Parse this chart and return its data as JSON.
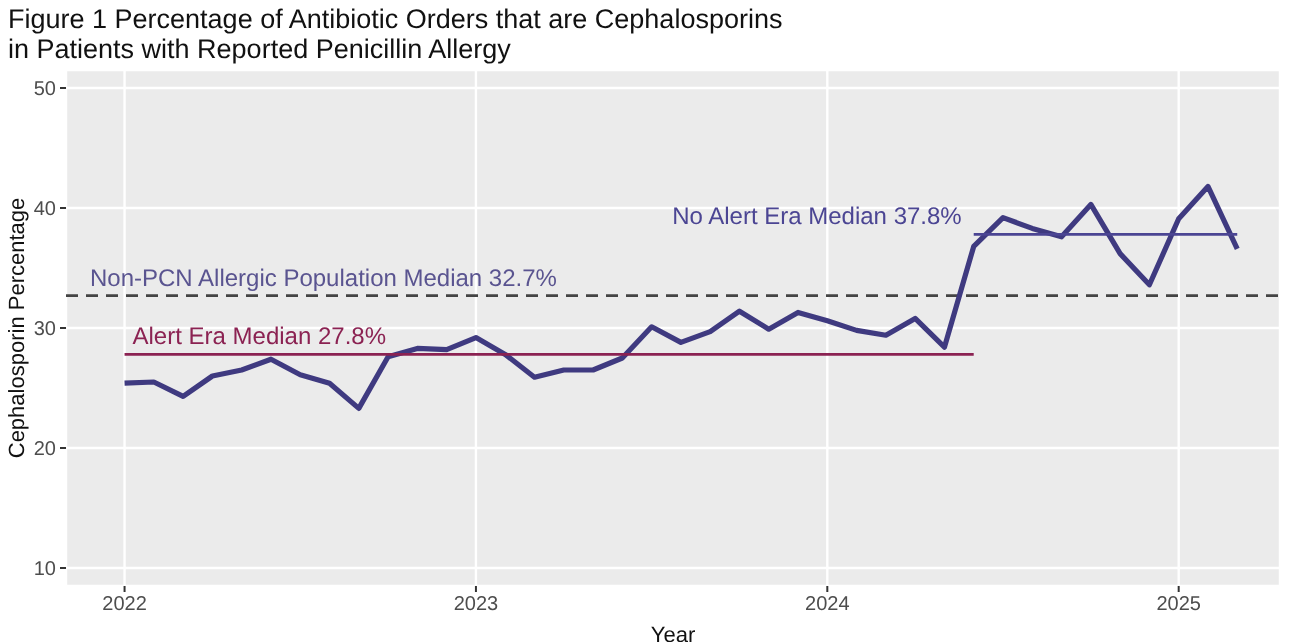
{
  "chart_data": {
    "type": "line",
    "title": "Figure 1 Percentage of Antibiotic Orders that are Cephalosporins\nin Patients with Reported Penicillin Allergy",
    "xlabel": "Year",
    "ylabel": "Cephalosporin Percentage",
    "x": [
      "2022-01",
      "2022-02",
      "2022-03",
      "2022-04",
      "2022-05",
      "2022-06",
      "2022-07",
      "2022-08",
      "2022-09",
      "2022-10",
      "2022-11",
      "2022-12",
      "2023-01",
      "2023-02",
      "2023-03",
      "2023-04",
      "2023-05",
      "2023-06",
      "2023-07",
      "2023-08",
      "2023-09",
      "2023-10",
      "2023-11",
      "2023-12",
      "2024-01",
      "2024-02",
      "2024-03",
      "2024-04",
      "2024-05",
      "2024-06",
      "2024-07",
      "2024-08",
      "2024-09",
      "2024-10",
      "2024-11",
      "2024-12",
      "2025-01",
      "2025-02",
      "2025-03"
    ],
    "series": [
      {
        "color": "#3f3a80",
        "values": [
          25.4,
          25.5,
          24.3,
          26.0,
          26.5,
          27.4,
          26.1,
          25.4,
          23.3,
          27.6,
          28.3,
          28.2,
          29.2,
          27.8,
          25.9,
          26.5,
          26.5,
          27.5,
          30.1,
          28.8,
          29.7,
          31.4,
          29.9,
          31.3,
          30.6,
          29.8,
          29.4,
          30.8,
          28.4,
          36.8,
          39.2,
          38.3,
          37.6,
          40.3,
          36.2,
          33.6,
          39.1,
          41.8,
          36.6
        ]
      },
      {
        "name": "Alert Era Median 27.8%",
        "color": "#8b2252",
        "x": [
          "2022-01",
          "2024-06"
        ],
        "values": [
          27.8,
          27.8
        ]
      },
      {
        "name": "No Alert Era Median 37.8%",
        "color": "#4b4593",
        "x": [
          "2024-06",
          "2025-03"
        ],
        "values": [
          37.8,
          37.8
        ]
      }
    ],
    "ref_lines": [
      {
        "axis": "y",
        "value": 32.7,
        "label": "Non-PCN Allergic Population Median 32.7%",
        "color": "#444444",
        "line_style": "dashed"
      }
    ],
    "xlim": [
      "2021-11",
      "2025-04-15"
    ],
    "xticks": [
      "2022",
      "2023",
      "2024",
      "2025"
    ],
    "ylim": [
      8.5,
      51.5
    ],
    "yticks": [
      10,
      20,
      30,
      40,
      50
    ],
    "grid": true,
    "marker": "none",
    "line_style": "solid"
  }
}
